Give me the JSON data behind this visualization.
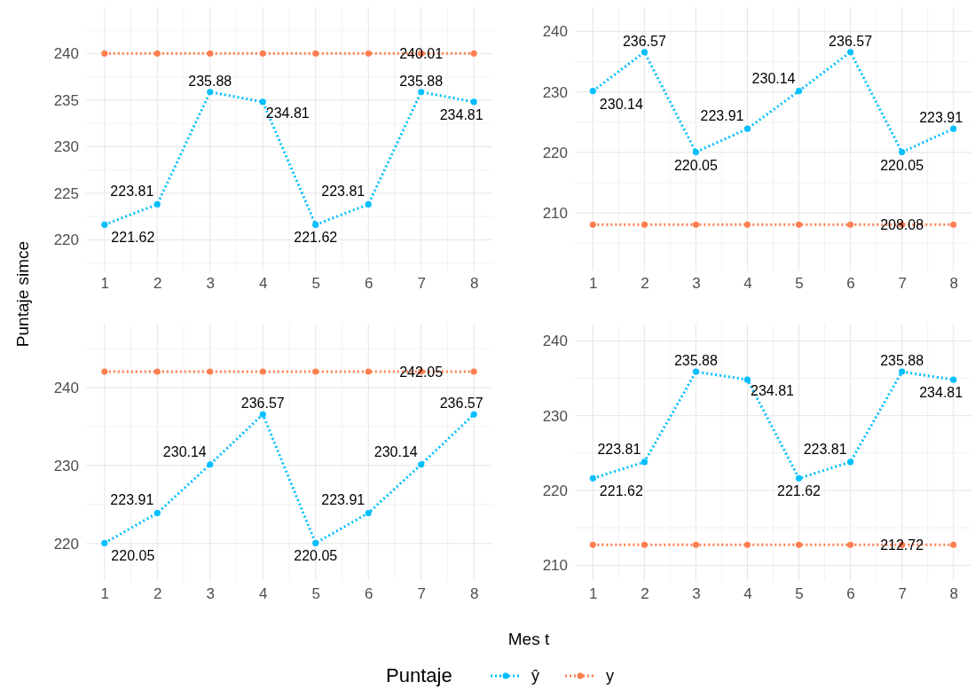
{
  "chart_data": [
    {
      "type": "line",
      "xlabel": "Mes t",
      "ylabel": "Puntaje simce",
      "legend_title": "Puntaje",
      "legend": "bottom",
      "grid": true,
      "marker": "circle",
      "line_style": "dotted",
      "x": [
        1,
        2,
        3,
        4,
        5,
        6,
        7,
        8
      ],
      "xlim": [
        0.65,
        8.35
      ],
      "xticks": [
        1,
        2,
        3,
        4,
        5,
        6,
        7,
        8
      ],
      "ylim": [
        216.7,
        245
      ],
      "yticks": [
        220,
        225,
        230,
        235,
        240
      ],
      "series": [
        {
          "name": "ŷ",
          "color": "#00bfff",
          "values": [
            221.62,
            223.81,
            235.88,
            234.81,
            221.62,
            223.81,
            235.88,
            234.81
          ],
          "value_labels": [
            "221.62",
            "223.81",
            "235.88",
            "234.81",
            "221.62",
            "223.81",
            "235.88",
            "234.81"
          ]
        },
        {
          "name": "y",
          "color": "#ff7f50",
          "values": [
            240.01,
            240.01,
            240.01,
            240.01,
            240.01,
            240.01,
            240.01,
            240.01
          ],
          "value_labels": [
            null,
            null,
            null,
            null,
            null,
            null,
            "240.01",
            null
          ]
        }
      ]
    },
    {
      "type": "line",
      "grid": true,
      "marker": "circle",
      "line_style": "dotted",
      "x": [
        1,
        2,
        3,
        4,
        5,
        6,
        7,
        8
      ],
      "xlim": [
        0.65,
        8.35
      ],
      "xticks": [
        1,
        2,
        3,
        4,
        5,
        6,
        7,
        8
      ],
      "ylim": [
        200.5,
        244
      ],
      "yticks": [
        210,
        220,
        230,
        240
      ],
      "series": [
        {
          "color": "#00bfff",
          "values": [
            230.14,
            236.57,
            220.05,
            223.91,
            230.14,
            236.57,
            220.05,
            223.91
          ],
          "value_labels": [
            "230.14",
            "236.57",
            "220.05",
            "223.91",
            "230.14",
            "236.57",
            "220.05",
            "223.91"
          ]
        },
        {
          "color": "#ff7f50",
          "values": [
            208.08,
            208.08,
            208.08,
            208.08,
            208.08,
            208.08,
            208.08,
            208.08
          ],
          "value_labels": [
            null,
            null,
            null,
            null,
            null,
            null,
            "208.08",
            null
          ]
        }
      ]
    },
    {
      "type": "line",
      "grid": true,
      "marker": "circle",
      "line_style": "dotted",
      "x": [
        1,
        2,
        3,
        4,
        5,
        6,
        7,
        8
      ],
      "xlim": [
        0.65,
        8.35
      ],
      "xticks": [
        1,
        2,
        3,
        4,
        5,
        6,
        7,
        8
      ],
      "ylim": [
        215.2,
        248.2
      ],
      "yticks": [
        220,
        230,
        240
      ],
      "series": [
        {
          "color": "#00bfff",
          "values": [
            220.05,
            223.91,
            230.14,
            236.57,
            220.05,
            223.91,
            230.14,
            236.57
          ],
          "value_labels": [
            "220.05",
            "223.91",
            "230.14",
            "236.57",
            "220.05",
            "223.91",
            "230.14",
            "236.57"
          ]
        },
        {
          "color": "#ff7f50",
          "values": [
            242.05,
            242.05,
            242.05,
            242.05,
            242.05,
            242.05,
            242.05,
            242.05
          ],
          "value_labels": [
            null,
            null,
            null,
            null,
            null,
            null,
            "242.05",
            null
          ]
        }
      ]
    },
    {
      "type": "line",
      "grid": true,
      "marker": "circle",
      "line_style": "dotted",
      "x": [
        1,
        2,
        3,
        4,
        5,
        6,
        7,
        8
      ],
      "xlim": [
        0.65,
        8.35
      ],
      "xticks": [
        1,
        2,
        3,
        4,
        5,
        6,
        7,
        8
      ],
      "ylim": [
        207.9,
        242.3
      ],
      "yticks": [
        210,
        220,
        230,
        240
      ],
      "series": [
        {
          "color": "#00bfff",
          "values": [
            221.62,
            223.81,
            235.88,
            234.81,
            221.62,
            223.81,
            235.88,
            234.81
          ],
          "value_labels": [
            "221.62",
            "223.81",
            "235.88",
            "234.81",
            "221.62",
            "223.81",
            "235.88",
            "234.81"
          ]
        },
        {
          "color": "#ff7f50",
          "values": [
            212.72,
            212.72,
            212.72,
            212.72,
            212.72,
            212.72,
            212.72,
            212.72
          ],
          "value_labels": [
            null,
            null,
            null,
            null,
            null,
            null,
            "212.72",
            null
          ]
        }
      ]
    }
  ]
}
